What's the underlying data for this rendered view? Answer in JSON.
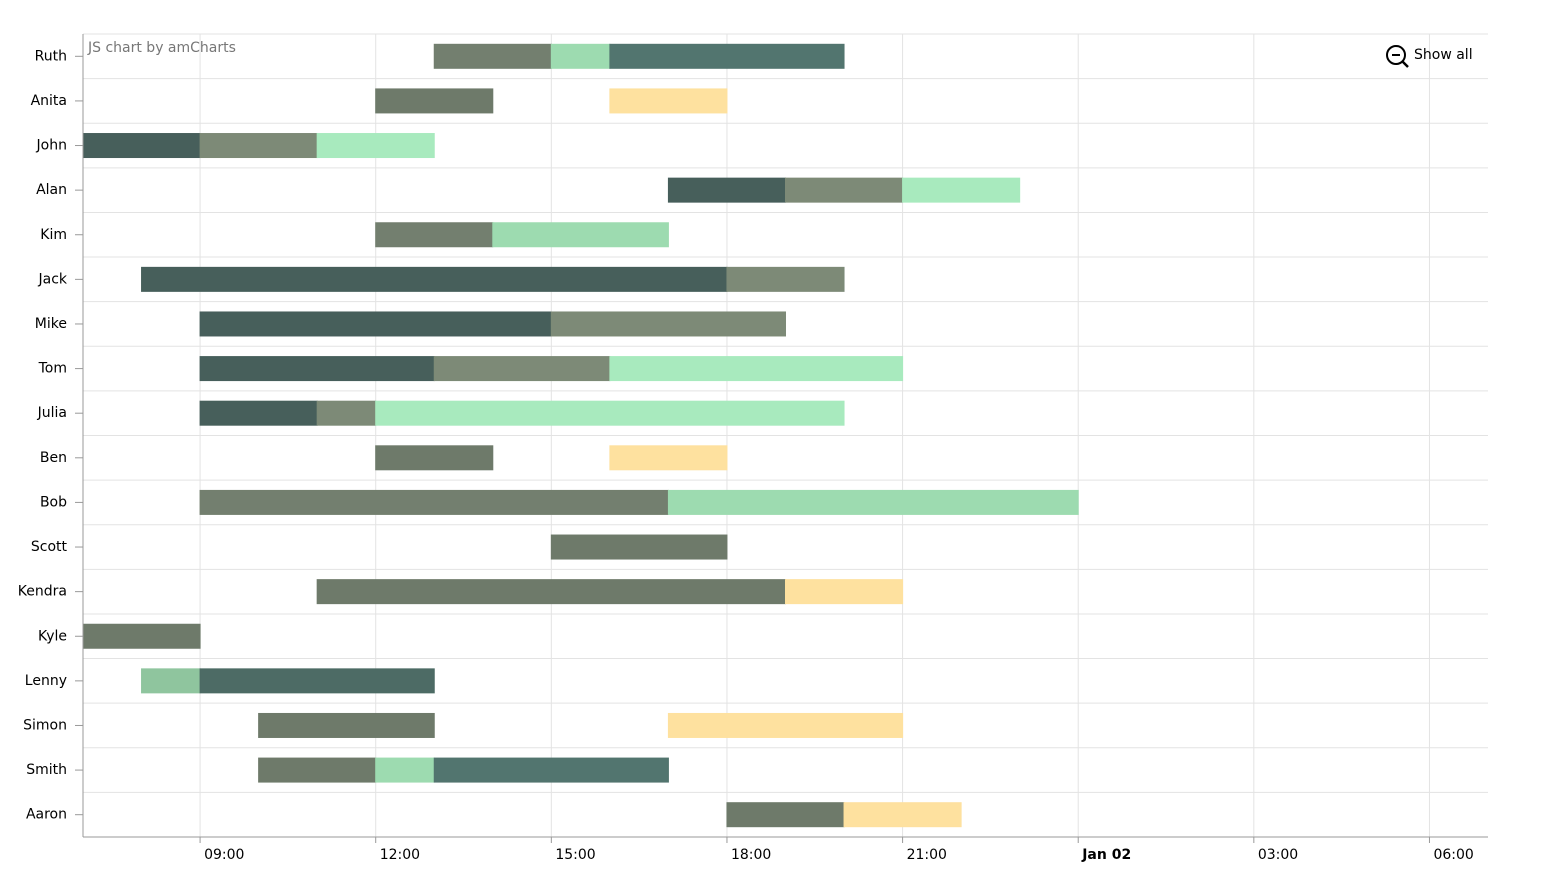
{
  "chart_data": {
    "type": "gantt",
    "credit": "JS chart by amCharts",
    "zoom_button": "Show all",
    "xlim": [
      7,
      31
    ],
    "xticks": [
      {
        "value": 9,
        "label": "09:00"
      },
      {
        "value": 12,
        "label": "12:00"
      },
      {
        "value": 15,
        "label": "15:00"
      },
      {
        "value": 18,
        "label": "18:00"
      },
      {
        "value": 21,
        "label": "21:00"
      },
      {
        "value": 24,
        "label": "Jan 02",
        "bold": true
      },
      {
        "value": 27,
        "label": "03:00"
      },
      {
        "value": 30,
        "label": "06:00"
      }
    ],
    "grid": true,
    "rows": [
      {
        "name": "Ruth",
        "segments": [
          {
            "start": 13,
            "end": 15,
            "color": "#737f6f"
          },
          {
            "start": 15,
            "end": 16,
            "color": "#9ddbb0"
          },
          {
            "start": 16,
            "end": 20,
            "color": "#52756f"
          }
        ]
      },
      {
        "name": "Anita",
        "segments": [
          {
            "start": 12,
            "end": 14,
            "color": "#6e7a6a"
          },
          {
            "start": 16,
            "end": 18,
            "color": "#fee19f"
          }
        ]
      },
      {
        "name": "John",
        "segments": [
          {
            "start": 7,
            "end": 9,
            "color": "#475f5b"
          },
          {
            "start": 9,
            "end": 11,
            "color": "#7d8a77"
          },
          {
            "start": 11,
            "end": 13,
            "color": "#a8eabe"
          }
        ]
      },
      {
        "name": "Alan",
        "segments": [
          {
            "start": 17,
            "end": 19,
            "color": "#475f5b"
          },
          {
            "start": 19,
            "end": 21,
            "color": "#7d8a77"
          },
          {
            "start": 21,
            "end": 23,
            "color": "#a8eabe"
          }
        ]
      },
      {
        "name": "Kim",
        "segments": [
          {
            "start": 12,
            "end": 14,
            "color": "#737f6f"
          },
          {
            "start": 14,
            "end": 17,
            "color": "#9ddbb0"
          }
        ]
      },
      {
        "name": "Jack",
        "segments": [
          {
            "start": 8,
            "end": 18,
            "color": "#475f5b"
          },
          {
            "start": 18,
            "end": 20,
            "color": "#7d8a77"
          }
        ]
      },
      {
        "name": "Mike",
        "segments": [
          {
            "start": 9,
            "end": 15,
            "color": "#475f5b"
          },
          {
            "start": 15,
            "end": 19,
            "color": "#7d8a77"
          }
        ]
      },
      {
        "name": "Tom",
        "segments": [
          {
            "start": 9,
            "end": 13,
            "color": "#475f5b"
          },
          {
            "start": 13,
            "end": 16,
            "color": "#7d8a77"
          },
          {
            "start": 16,
            "end": 21,
            "color": "#a8eabe"
          }
        ]
      },
      {
        "name": "Julia",
        "segments": [
          {
            "start": 9,
            "end": 11,
            "color": "#475f5b"
          },
          {
            "start": 11,
            "end": 12,
            "color": "#7d8a77"
          },
          {
            "start": 12,
            "end": 20,
            "color": "#a8eabe"
          }
        ]
      },
      {
        "name": "Ben",
        "segments": [
          {
            "start": 12,
            "end": 14,
            "color": "#6e7a6a"
          },
          {
            "start": 16,
            "end": 18,
            "color": "#fee19f"
          }
        ]
      },
      {
        "name": "Bob",
        "segments": [
          {
            "start": 9,
            "end": 17,
            "color": "#737f6f"
          },
          {
            "start": 17,
            "end": 24,
            "color": "#9ddbb0"
          }
        ]
      },
      {
        "name": "Scott",
        "segments": [
          {
            "start": 15,
            "end": 18,
            "color": "#6e7a6a"
          }
        ]
      },
      {
        "name": "Kendra",
        "segments": [
          {
            "start": 11,
            "end": 19,
            "color": "#6e7a6a"
          },
          {
            "start": 19,
            "end": 21,
            "color": "#fee19f"
          }
        ]
      },
      {
        "name": "Kyle",
        "segments": [
          {
            "start": 7,
            "end": 9,
            "color": "#6e7a6a"
          }
        ]
      },
      {
        "name": "Lenny",
        "segments": [
          {
            "start": 8,
            "end": 9,
            "color": "#8fc59e"
          },
          {
            "start": 9,
            "end": 13,
            "color": "#4d6b65"
          }
        ]
      },
      {
        "name": "Simon",
        "segments": [
          {
            "start": 10,
            "end": 13,
            "color": "#6e7a6a"
          },
          {
            "start": 17,
            "end": 21,
            "color": "#fee19f"
          }
        ]
      },
      {
        "name": "Smith",
        "segments": [
          {
            "start": 10,
            "end": 12,
            "color": "#6e7a6a"
          },
          {
            "start": 12,
            "end": 13,
            "color": "#9ddbb0"
          },
          {
            "start": 13,
            "end": 17,
            "color": "#52756f"
          }
        ]
      },
      {
        "name": "Aaron",
        "segments": [
          {
            "start": 18,
            "end": 20,
            "color": "#6e7a6a"
          },
          {
            "start": 20,
            "end": 22,
            "color": "#fee19f"
          }
        ]
      }
    ]
  }
}
